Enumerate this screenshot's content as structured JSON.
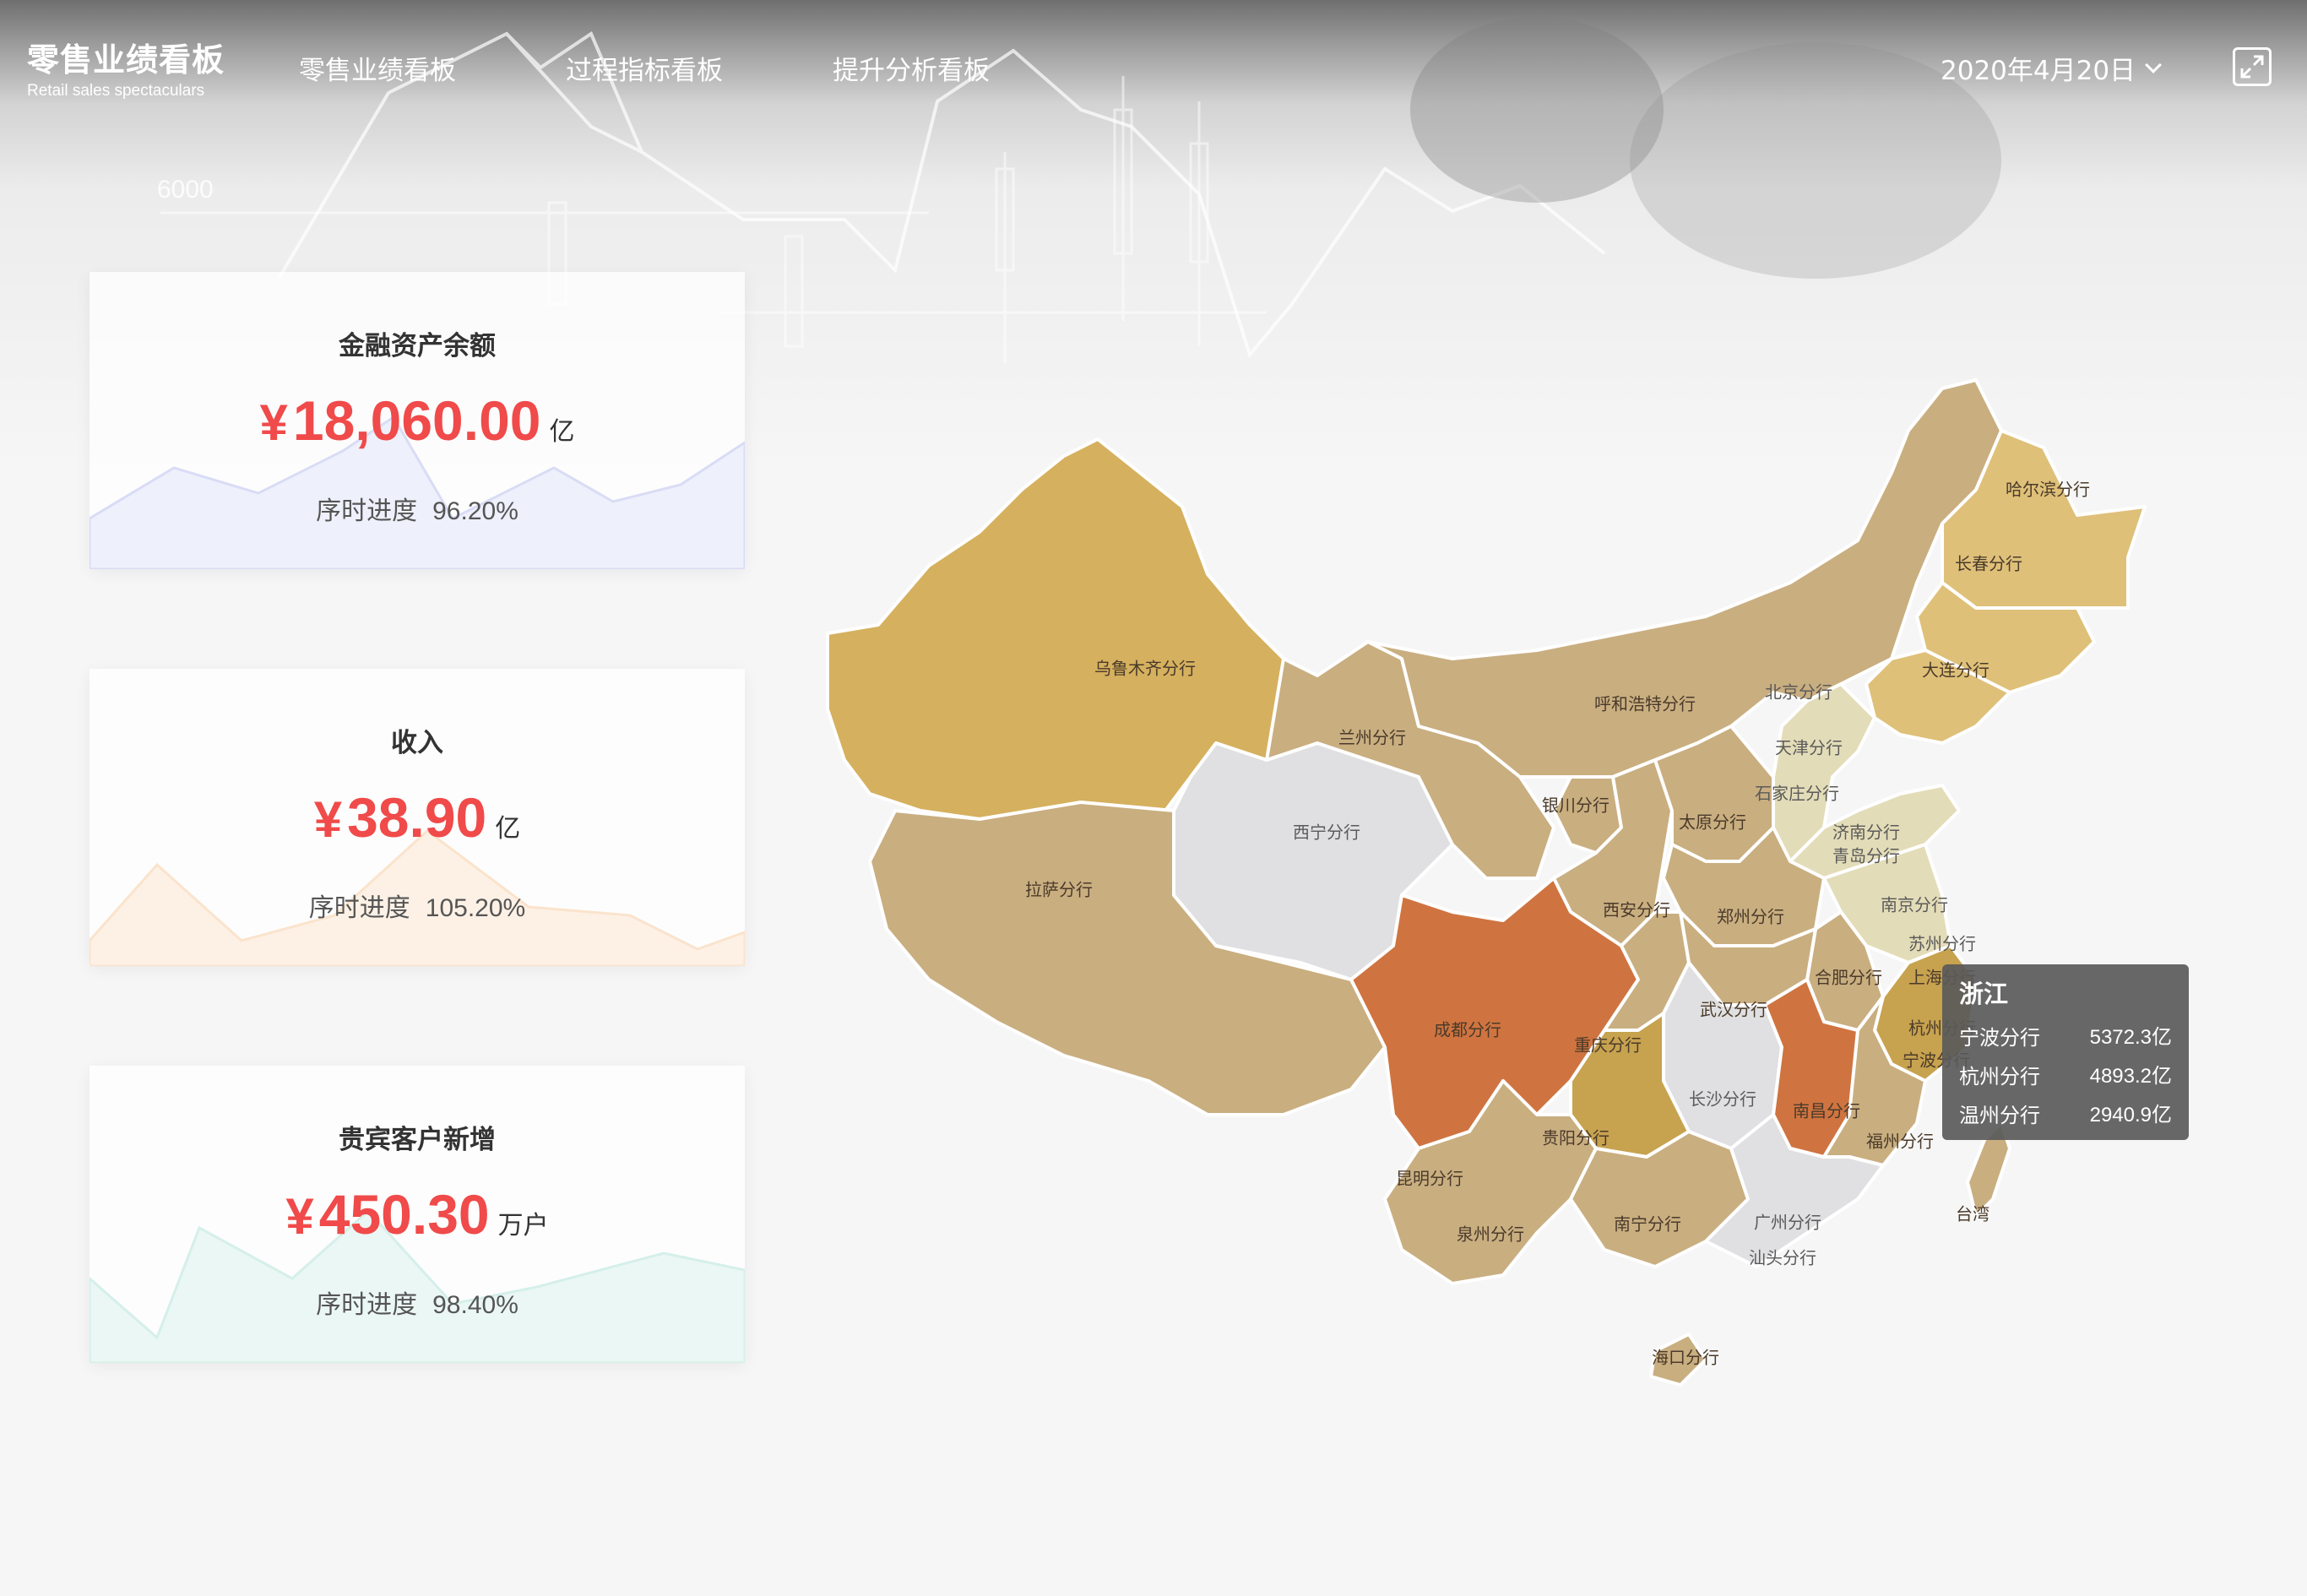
{
  "app": {
    "title": "零售业绩看板",
    "subtitle": "Retail sales spectaculars"
  },
  "nav": {
    "items": [
      {
        "label": "零售业绩看板"
      },
      {
        "label": "过程指标看板"
      },
      {
        "label": "提升分析看板"
      }
    ]
  },
  "header": {
    "date": "2020年4月20日",
    "fullscreen_icon": "expand-icon"
  },
  "background": {
    "axis_tick": "6000"
  },
  "cards": [
    {
      "title": "金融资产余额",
      "currency": "¥",
      "value": "18,060.00",
      "unit": "亿",
      "progress_label": "序时进度",
      "progress_value": "96.20%",
      "accent": "#d9dcf5"
    },
    {
      "title": "收入",
      "currency": "¥",
      "value": "38.90",
      "unit": "亿",
      "progress_label": "序时进度",
      "progress_value": "105.20%",
      "accent": "#fbe3cc"
    },
    {
      "title": "贵宾客户新增",
      "currency": "¥",
      "value": "450.30",
      "unit": "万户",
      "progress_label": "序时进度",
      "progress_value": "98.40%",
      "accent": "#d5efe9"
    }
  ],
  "map": {
    "labels": [
      "乌鲁木齐分行",
      "拉萨分行",
      "西宁分行",
      "兰州分行",
      "呼和浩特分行",
      "银川分行",
      "哈尔滨分行",
      "长春分行",
      "大连分行",
      "北京分行",
      "天津分行",
      "石家庄分行",
      "太原分行",
      "济南分行",
      "青岛分行",
      "西安分行",
      "郑州分行",
      "南京分行",
      "苏州分行",
      "合肥分行",
      "上海分行",
      "杭州分行",
      "宁波分行",
      "成都分行",
      "重庆分行",
      "武汉分行",
      "长沙分行",
      "南昌分行",
      "贵阳分行",
      "福州分行",
      "昆明分行",
      "泉州分行",
      "南宁分行",
      "广州分行",
      "汕头分行",
      "台湾",
      "海口分行"
    ],
    "colors": {
      "high": "#cf7440",
      "gold": "#d5b05e",
      "tan": "#c9ae80",
      "light_gold": "#dfc079",
      "pale": "#e3dcb8",
      "gray": "#e0e0e2",
      "mid": "#c7a24f"
    }
  },
  "tooltip": {
    "title": "浙江",
    "rows": [
      {
        "name": "宁波分行",
        "value": "5372.3亿"
      },
      {
        "name": "杭州分行",
        "value": "4893.2亿"
      },
      {
        "name": "温州分行",
        "value": "2940.9亿"
      }
    ]
  }
}
